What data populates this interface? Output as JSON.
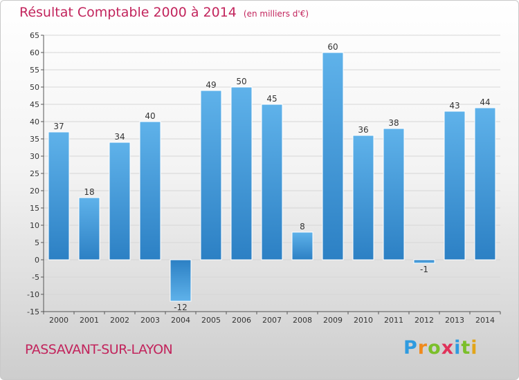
{
  "header": {
    "title": "Résultat Comptable 2000 à 2014",
    "unit": "(en milliers d'€)"
  },
  "footer": {
    "place": "PASSAVANT-SUR-LAYON",
    "logo_letters": [
      "P",
      "r",
      "o",
      "x",
      "i",
      "t",
      "i"
    ],
    "logo_colors": [
      "#2f9be0",
      "#f08a1c",
      "#7bbf2a",
      "#e0325a",
      "#2f9be0",
      "#7bbf2a",
      "#e2a51a"
    ]
  },
  "colors": {
    "bar_light": "#5fb2ea",
    "bar_dark": "#2c80c4",
    "grid": "#d6d6d6",
    "text": "#333333",
    "title": "#c2245c"
  },
  "chart_data": {
    "type": "bar",
    "categories": [
      "2000",
      "2001",
      "2002",
      "2003",
      "2004",
      "2005",
      "2006",
      "2007",
      "2008",
      "2009",
      "2010",
      "2011",
      "2012",
      "2013",
      "2014"
    ],
    "values": [
      37,
      18,
      34,
      40,
      -12,
      49,
      50,
      45,
      8,
      60,
      36,
      38,
      -1,
      43,
      44
    ],
    "value_labels": [
      "37",
      "18",
      "34",
      "40",
      "-12",
      "49",
      "50",
      "45",
      "8",
      "60",
      "36",
      "38",
      "-1",
      "43",
      "44"
    ],
    "ylim": [
      -15,
      65
    ],
    "yticks": [
      -15,
      -10,
      -5,
      0,
      5,
      10,
      15,
      20,
      25,
      30,
      35,
      40,
      45,
      50,
      55,
      60,
      65
    ],
    "grid": true,
    "title": "Résultat Comptable 2000 à 2014",
    "xlabel": "",
    "ylabel": ""
  }
}
